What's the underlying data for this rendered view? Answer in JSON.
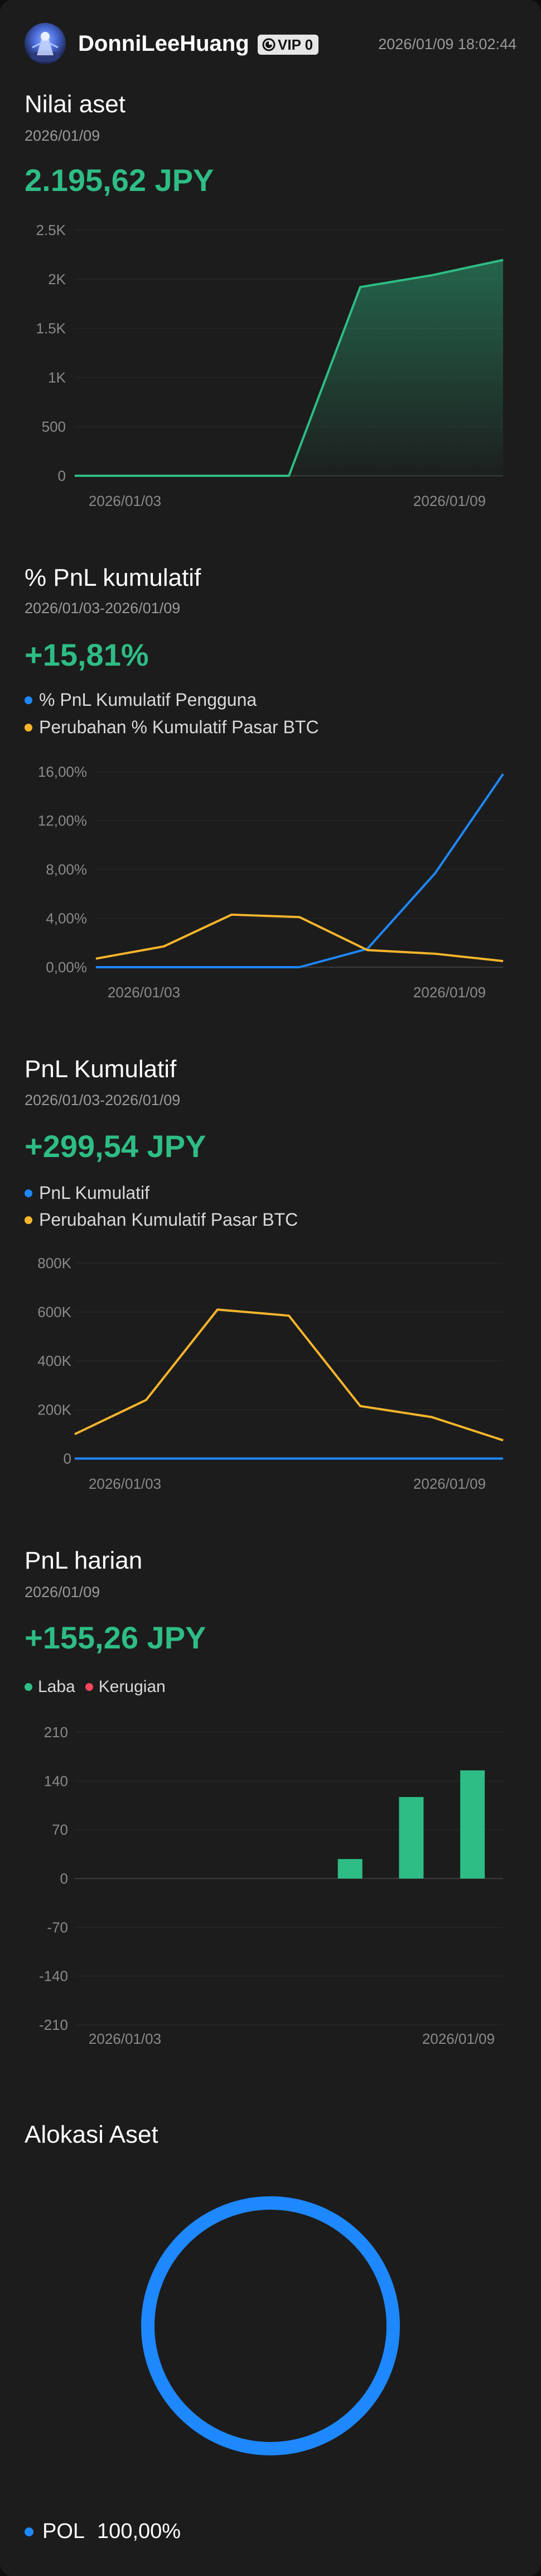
{
  "header": {
    "username": "DonniLeeHuang",
    "vip_label": "VIP 0",
    "timestamp": "2026/01/09 18:02:44"
  },
  "asset_value": {
    "title": "Nilai aset",
    "date": "2026/01/09",
    "value": "2.195,62 JPY",
    "chart_data": {
      "type": "area",
      "x": [
        "2026/01/03",
        "2026/01/04",
        "2026/01/05",
        "2026/01/06",
        "2026/01/07",
        "2026/01/08",
        "2026/01/09"
      ],
      "y_tick_labels": [
        "2.5K",
        "2K",
        "1.5K",
        "1K",
        "500",
        "0"
      ],
      "x_tick_labels": [
        "2026/01/03",
        "2026/01/09"
      ],
      "ylim": [
        0,
        2500
      ],
      "series": [
        {
          "values": [
            0,
            0,
            0,
            0,
            1920,
            2040,
            2196
          ]
        }
      ],
      "color": "#2ebd85"
    }
  },
  "cum_pnl_pct": {
    "title": "% PnL kumulatif",
    "date_range": "2026/01/03-2026/01/09",
    "value": "+15,81%",
    "legend": [
      {
        "label": "% PnL Kumulatif Pengguna",
        "color": "#1e88ff"
      },
      {
        "label": "Perubahan % Kumulatif Pasar BTC",
        "color": "#f7b52c"
      }
    ],
    "chart_data": {
      "type": "line",
      "x": [
        "2026/01/03",
        "2026/01/04",
        "2026/01/05",
        "2026/01/06",
        "2026/01/07",
        "2026/01/08",
        "2026/01/09"
      ],
      "y_tick_labels": [
        "16,00%",
        "12,00%",
        "8,00%",
        "4,00%",
        "0,00%"
      ],
      "x_tick_labels": [
        "2026/01/03",
        "2026/01/09"
      ],
      "ylim": [
        0,
        16
      ],
      "series": [
        {
          "name": "% PnL Kumulatif Pengguna",
          "color": "#1e88ff",
          "values": [
            0,
            0,
            0,
            0,
            1.5,
            7.7,
            15.81
          ]
        },
        {
          "name": "Perubahan % Kumulatif Pasar BTC",
          "color": "#f7b52c",
          "values": [
            0.7,
            1.7,
            4.3,
            4.1,
            1.4,
            1.1,
            0.5
          ]
        }
      ]
    }
  },
  "cum_pnl": {
    "title": "PnL Kumulatif",
    "date_range": "2026/01/03-2026/01/09",
    "value": "+299,54 JPY",
    "legend": [
      {
        "label": "PnL Kumulatif",
        "color": "#1e88ff"
      },
      {
        "label": "Perubahan Kumulatif Pasar BTC",
        "color": "#f7b52c"
      }
    ],
    "chart_data": {
      "type": "line",
      "x": [
        "2026/01/03",
        "2026/01/04",
        "2026/01/05",
        "2026/01/06",
        "2026/01/07",
        "2026/01/08",
        "2026/01/09"
      ],
      "y_tick_labels": [
        "800K",
        "600K",
        "400K",
        "200K",
        "0"
      ],
      "x_tick_labels": [
        "2026/01/03",
        "2026/01/09"
      ],
      "ylim": [
        0,
        800000
      ],
      "series": [
        {
          "name": "PnL Kumulatif",
          "color": "#1e88ff",
          "values": [
            300,
            300,
            300,
            300,
            300,
            300,
            300
          ]
        },
        {
          "name": "Perubahan Kumulatif Pasar BTC",
          "color": "#f7b52c",
          "values": [
            100000,
            240000,
            610000,
            585000,
            215000,
            170000,
            75000
          ]
        }
      ]
    }
  },
  "daily_pnl": {
    "title": "PnL harian",
    "date": "2026/01/09",
    "value": "+155,26 JPY",
    "legend": [
      {
        "label": "Laba",
        "color": "#2ebd85"
      },
      {
        "label": "Kerugian",
        "color": "#f6465d"
      }
    ],
    "chart_data": {
      "type": "bar",
      "categories": [
        "2026/01/03",
        "2026/01/04",
        "2026/01/05",
        "2026/01/06",
        "2026/01/07",
        "2026/01/08",
        "2026/01/09"
      ],
      "y_tick_labels": [
        "210",
        "140",
        "70",
        "0",
        "-70",
        "-140",
        "-210"
      ],
      "x_tick_labels": [
        "2026/01/03",
        "2026/01/09"
      ],
      "ylim": [
        -210,
        210
      ],
      "series": [
        {
          "values": [
            0,
            0,
            0,
            0,
            28,
            117,
            155.26
          ]
        }
      ],
      "positive_color": "#2ebd85",
      "negative_color": "#f6465d"
    }
  },
  "allocation": {
    "title": "Alokasi Aset",
    "chart_data": {
      "type": "pie",
      "categories": [
        "POL"
      ],
      "values": [
        100
      ],
      "colors": [
        "#1e88ff"
      ]
    },
    "legend": [
      {
        "label": "POL",
        "percent": "100,00%",
        "color": "#1e88ff"
      }
    ]
  }
}
